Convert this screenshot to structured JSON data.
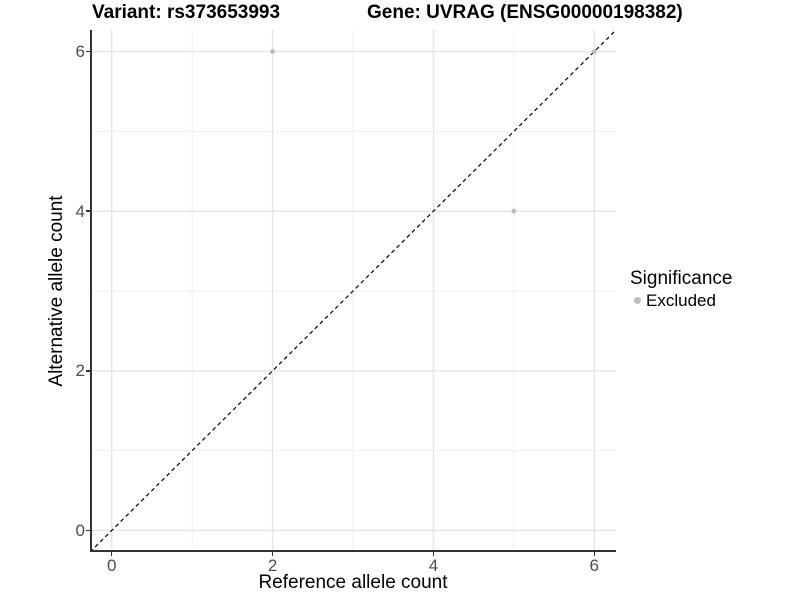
{
  "chart_data": {
    "type": "scatter",
    "title_left": "Variant: rs373653993",
    "title_right": "Gene: UVRAG (ENSG00000198382)",
    "xlabel": "Reference allele count",
    "ylabel": "Alternative allele count",
    "xlim": [
      -0.27,
      6.27
    ],
    "ylim": [
      -0.27,
      6.27
    ],
    "x_ticks": [
      0,
      2,
      4,
      6
    ],
    "y_ticks": [
      0,
      2,
      4,
      6
    ],
    "x_minor_ticks": [
      1,
      3,
      5
    ],
    "y_minor_ticks": [
      1,
      3,
      5
    ],
    "grid": "major+minor",
    "series": [
      {
        "name": "Excluded",
        "marker": "circle",
        "color": "#bdbdbd",
        "size": 2.4,
        "points": [
          [
            2,
            6
          ],
          [
            5,
            4
          ],
          [
            6,
            6
          ]
        ]
      }
    ],
    "reference_line": {
      "type": "identity",
      "style": "dashed",
      "color": "#000000"
    },
    "legend": {
      "title": "Significance",
      "position": "right",
      "entries": [
        {
          "label": "Excluded",
          "color": "#bdbdbd"
        }
      ]
    },
    "style": {
      "background": "#ffffff",
      "axis_color": "#333333",
      "grid_major_color": "#e4e4e4",
      "grid_minor_color": "#f0f0f0",
      "tick_label_color": "#4d4d4d"
    }
  }
}
